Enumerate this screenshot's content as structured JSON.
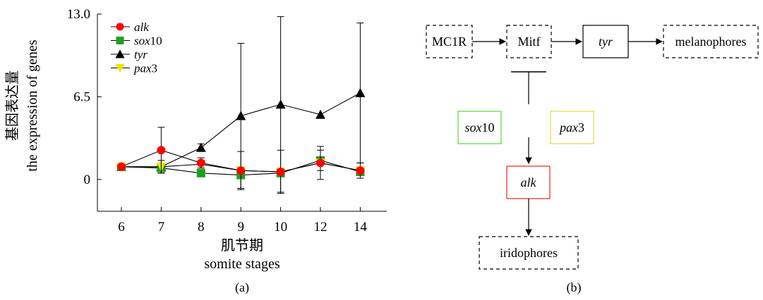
{
  "chart_data": {
    "type": "line",
    "categories": [
      "6",
      "7",
      "8",
      "9",
      "10",
      "12",
      "14"
    ],
    "ylim": [
      -2.5,
      13.0
    ],
    "yticks": [
      "0",
      "6.5",
      "13.0"
    ],
    "ylabel_cn": "基因表达量",
    "ylabel_en": "the expression of genes",
    "xlabel_cn": "肌节期",
    "xlabel_en": "somite stages",
    "panel_label": "(a)",
    "series": [
      {
        "name_italic": "tyr",
        "name_rest": "",
        "color": "#000000",
        "marker": "triangle-up",
        "values": [
          1.0,
          1.0,
          2.5,
          5.0,
          5.9,
          5.1,
          6.8
        ],
        "err": [
          0.0,
          0.5,
          0.3,
          5.7,
          6.9,
          0.0,
          5.5
        ]
      },
      {
        "name_italic": "sox",
        "name_rest": "10",
        "color": "#1f9e1f",
        "marker": "square",
        "values": [
          1.0,
          0.9,
          0.5,
          0.35,
          0.5,
          1.5,
          0.6
        ],
        "err": [
          0.0,
          0.3,
          0.0,
          0.0,
          0.0,
          0.8,
          0.0
        ]
      },
      {
        "name_italic": "pax",
        "name_rest": "3",
        "color": "#e6e600",
        "marker": "triangle-down",
        "values": [
          1.0,
          1.0,
          1.2,
          0.7,
          0.6,
          1.3,
          0.7
        ],
        "err": [
          0.0,
          0.0,
          0.0,
          0.0,
          0.0,
          0.0,
          0.0
        ]
      },
      {
        "name_italic": "alk",
        "name_rest": "",
        "color": "#ff0000",
        "marker": "circle",
        "values": [
          1.0,
          2.3,
          1.3,
          0.7,
          0.6,
          1.3,
          0.7
        ],
        "err": [
          0.0,
          1.8,
          0.4,
          1.5,
          1.7,
          1.3,
          0.6
        ]
      }
    ],
    "legend": [
      {
        "italic": "alk",
        "rest": "",
        "color": "#ff0000",
        "marker": "circle"
      },
      {
        "italic": "sox",
        "rest": "10",
        "color": "#1f9e1f",
        "marker": "square"
      },
      {
        "italic": "tyr",
        "rest": "",
        "color": "#000000",
        "marker": "triangle-up"
      },
      {
        "italic": "pax",
        "rest": "3",
        "color": "#e6e600",
        "marker": "triangle-down"
      }
    ],
    "legend_position": "top-left"
  },
  "diagram": {
    "panel_label": "(b)",
    "nodes": {
      "mc1r": "MC1R",
      "mitf": "Mitf",
      "tyr": "tyr",
      "melanophores": "melanophores",
      "sox10_italic": "sox",
      "sox10_rest": "10",
      "pax3_italic": "pax",
      "pax3_rest": "3",
      "alk": "alk",
      "iridophores": "iridophores"
    },
    "colors": {
      "sox10": "#55dd33",
      "pax3": "#dddd44",
      "alk": "#ee2222"
    }
  }
}
